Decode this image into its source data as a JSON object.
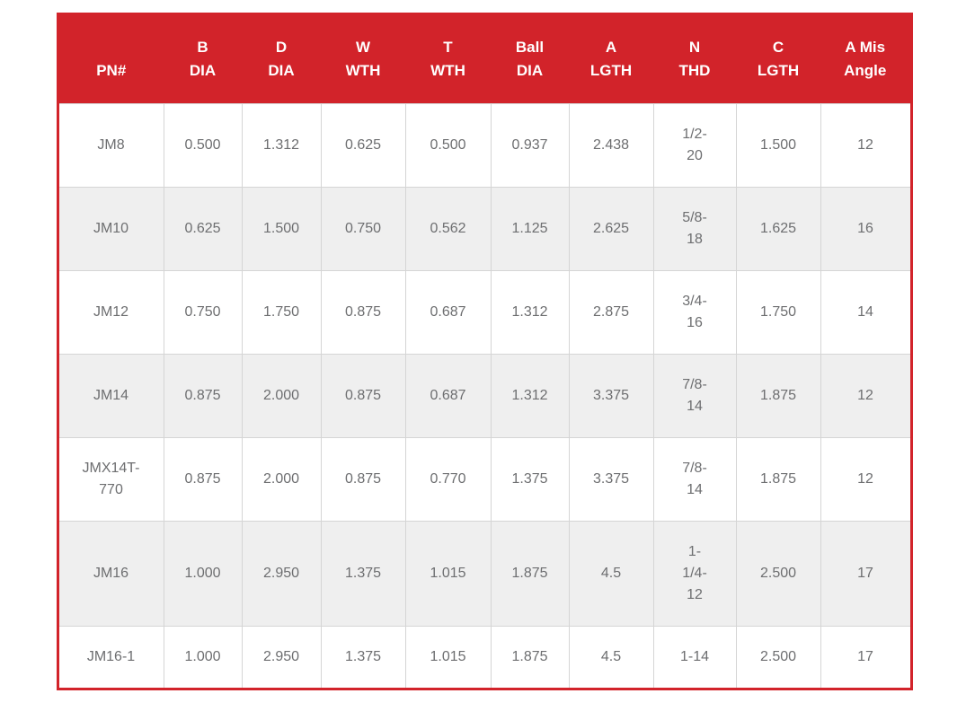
{
  "table": {
    "accent_color": "#d2232a",
    "alt_row_color": "#efefef",
    "grid_line_color": "#d5d5d5",
    "body_text_color": "#6d6e70",
    "header_text_color": "#ffffff",
    "columns": [
      {
        "line1": "",
        "line2": "PN#"
      },
      {
        "line1": "B",
        "line2": "DIA"
      },
      {
        "line1": "D",
        "line2": "DIA"
      },
      {
        "line1": "W",
        "line2": "WTH"
      },
      {
        "line1": "T",
        "line2": "WTH"
      },
      {
        "line1": "Ball",
        "line2": "DIA"
      },
      {
        "line1": "A",
        "line2": "LGTH"
      },
      {
        "line1": "N",
        "line2": "THD"
      },
      {
        "line1": "C",
        "line2": "LGTH"
      },
      {
        "line1": "A Mis",
        "line2": "Angle"
      }
    ],
    "rows": [
      {
        "cells": [
          "JM8",
          "0.500",
          "1.312",
          "0.625",
          "0.500",
          "0.937",
          "2.438",
          "1/2-20",
          "1.500",
          "12"
        ]
      },
      {
        "cells": [
          "JM10",
          "0.625",
          "1.500",
          "0.750",
          "0.562",
          "1.125",
          "2.625",
          "5/8-18",
          "1.625",
          "16"
        ]
      },
      {
        "cells": [
          "JM12",
          "0.750",
          "1.750",
          "0.875",
          "0.687",
          "1.312",
          "2.875",
          "3/4-16",
          "1.750",
          "14"
        ]
      },
      {
        "cells": [
          "JM14",
          "0.875",
          "2.000",
          "0.875",
          "0.687",
          "1.312",
          "3.375",
          "7/8-14",
          "1.875",
          "12"
        ]
      },
      {
        "cells": [
          "JMX14T-770",
          "0.875",
          "2.000",
          "0.875",
          "0.770",
          "1.375",
          "3.375",
          "7/8-14",
          "1.875",
          "12"
        ]
      },
      {
        "cells": [
          "JM16",
          "1.000",
          "2.950",
          "1.375",
          "1.015",
          "1.875",
          "4.5",
          "1-1/4-12",
          "2.500",
          "17"
        ]
      },
      {
        "cells": [
          "JM16-1",
          "1.000",
          "2.950",
          "1.375",
          "1.015",
          "1.875",
          "4.5",
          "1-14",
          "2.500",
          "17"
        ]
      }
    ]
  }
}
